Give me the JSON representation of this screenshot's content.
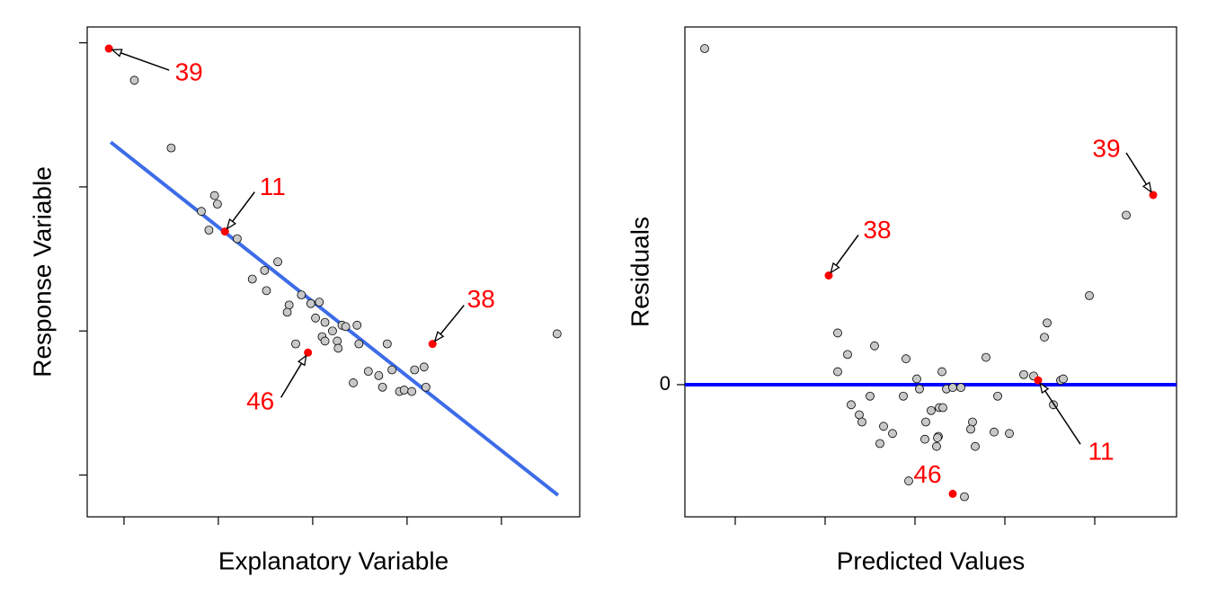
{
  "chart_data": [
    {
      "type": "scatter",
      "xlabel": "Explanatory Variable",
      "ylabel": "Response Variable",
      "xlim": [
        0.61,
        5.83
      ],
      "ylim": [
        0.71,
        4.11
      ],
      "xticks": [
        1,
        2,
        3,
        4,
        5
      ],
      "yticks": [
        1,
        2,
        3,
        4
      ],
      "x_tick_labels": false,
      "y_tick_labels": false,
      "x": [
        0.84,
        1.11,
        1.5,
        1.96,
        1.99,
        1.82,
        1.9,
        2.07,
        2.2,
        2.63,
        2.49,
        2.36,
        2.51,
        2.75,
        2.73,
        2.88,
        2.98,
        3.07,
        3.03,
        3.13,
        3.1,
        3.13,
        3.21,
        3.26,
        3.27,
        3.31,
        3.35,
        3.47,
        3.49,
        2.82,
        2.95,
        3.59,
        3.7,
        3.79,
        3.43,
        3.74,
        3.84,
        3.92,
        3.97,
        4.05,
        4.08,
        4.18,
        4.2,
        4.27,
        5.59
      ],
      "y": [
        3.96,
        3.74,
        3.27,
        2.94,
        2.88,
        2.83,
        2.7,
        2.69,
        2.64,
        2.48,
        2.42,
        2.36,
        2.28,
        2.18,
        2.13,
        2.25,
        2.19,
        2.2,
        2.09,
        2.06,
        1.96,
        1.93,
        2.0,
        1.93,
        1.88,
        2.04,
        2.03,
        2.04,
        1.91,
        1.91,
        1.85,
        1.72,
        1.69,
        1.91,
        1.64,
        1.61,
        1.73,
        1.58,
        1.59,
        1.58,
        1.73,
        1.75,
        1.61,
        1.91,
        1.98
      ],
      "color": "#c8c8c8",
      "highlight_color": "#ff0000",
      "fit": {
        "x": [
          0.86,
          5.6
        ],
        "y": [
          3.31,
          0.86
        ],
        "color": "#3d6ce8"
      },
      "annotations": [
        {
          "label": "39",
          "point": 0
        },
        {
          "label": "11",
          "point": 7
        },
        {
          "label": "38",
          "point": 43
        },
        {
          "label": "46",
          "point": 30
        }
      ]
    },
    {
      "type": "scatter",
      "xlabel": "Predicted Values",
      "ylabel": "Residuals",
      "xlim": [
        0.44,
        5.91
      ],
      "ylim": [
        -0.92,
        2.49
      ],
      "xticks": [
        1,
        2,
        3,
        4,
        5
      ],
      "yticks": [
        0
      ],
      "x_tick_labels": false,
      "y_tick_labels": true,
      "x": [
        0.66,
        5.65,
        5.35,
        2.04,
        4.94,
        2.14,
        4.47,
        4.44,
        2.55,
        2.25,
        2.9,
        3.79,
        2.14,
        3.3,
        3.02,
        4.21,
        4.32,
        4.37,
        4.62,
        4.65,
        3.05,
        3.35,
        3.42,
        3.51,
        2.87,
        2.5,
        3.92,
        2.29,
        4.54,
        2.38,
        3.27,
        3.31,
        3.18,
        3.12,
        2.41,
        2.65,
        3.64,
        3.62,
        2.75,
        3.88,
        4.05,
        3.26,
        3.11,
        3.25,
        2.61,
        3.24,
        3.67,
        2.93,
        3.42,
        3.55
      ],
      "y": [
        2.34,
        1.32,
        1.18,
        0.76,
        0.62,
        0.36,
        0.43,
        0.33,
        0.27,
        0.21,
        0.18,
        0.19,
        0.09,
        0.09,
        0.04,
        0.07,
        0.06,
        0.03,
        0.03,
        0.04,
        -0.03,
        -0.03,
        -0.02,
        -0.02,
        -0.08,
        -0.08,
        -0.08,
        -0.14,
        -0.14,
        -0.21,
        -0.16,
        -0.16,
        -0.18,
        -0.26,
        -0.26,
        -0.29,
        -0.26,
        -0.31,
        -0.34,
        -0.33,
        -0.34,
        -0.36,
        -0.38,
        -0.37,
        -0.41,
        -0.43,
        -0.43,
        -0.67,
        -0.76,
        -0.78
      ],
      "color": "#c8c8c8",
      "highlight_color": "#ff0000",
      "reference_line": {
        "y": 0,
        "color": "#0000ff"
      },
      "annotations": [
        {
          "label": "39",
          "point": 1
        },
        {
          "label": "38",
          "point": 3
        },
        {
          "label": "11",
          "point": 17
        },
        {
          "label": "46",
          "point": 48
        }
      ]
    }
  ]
}
